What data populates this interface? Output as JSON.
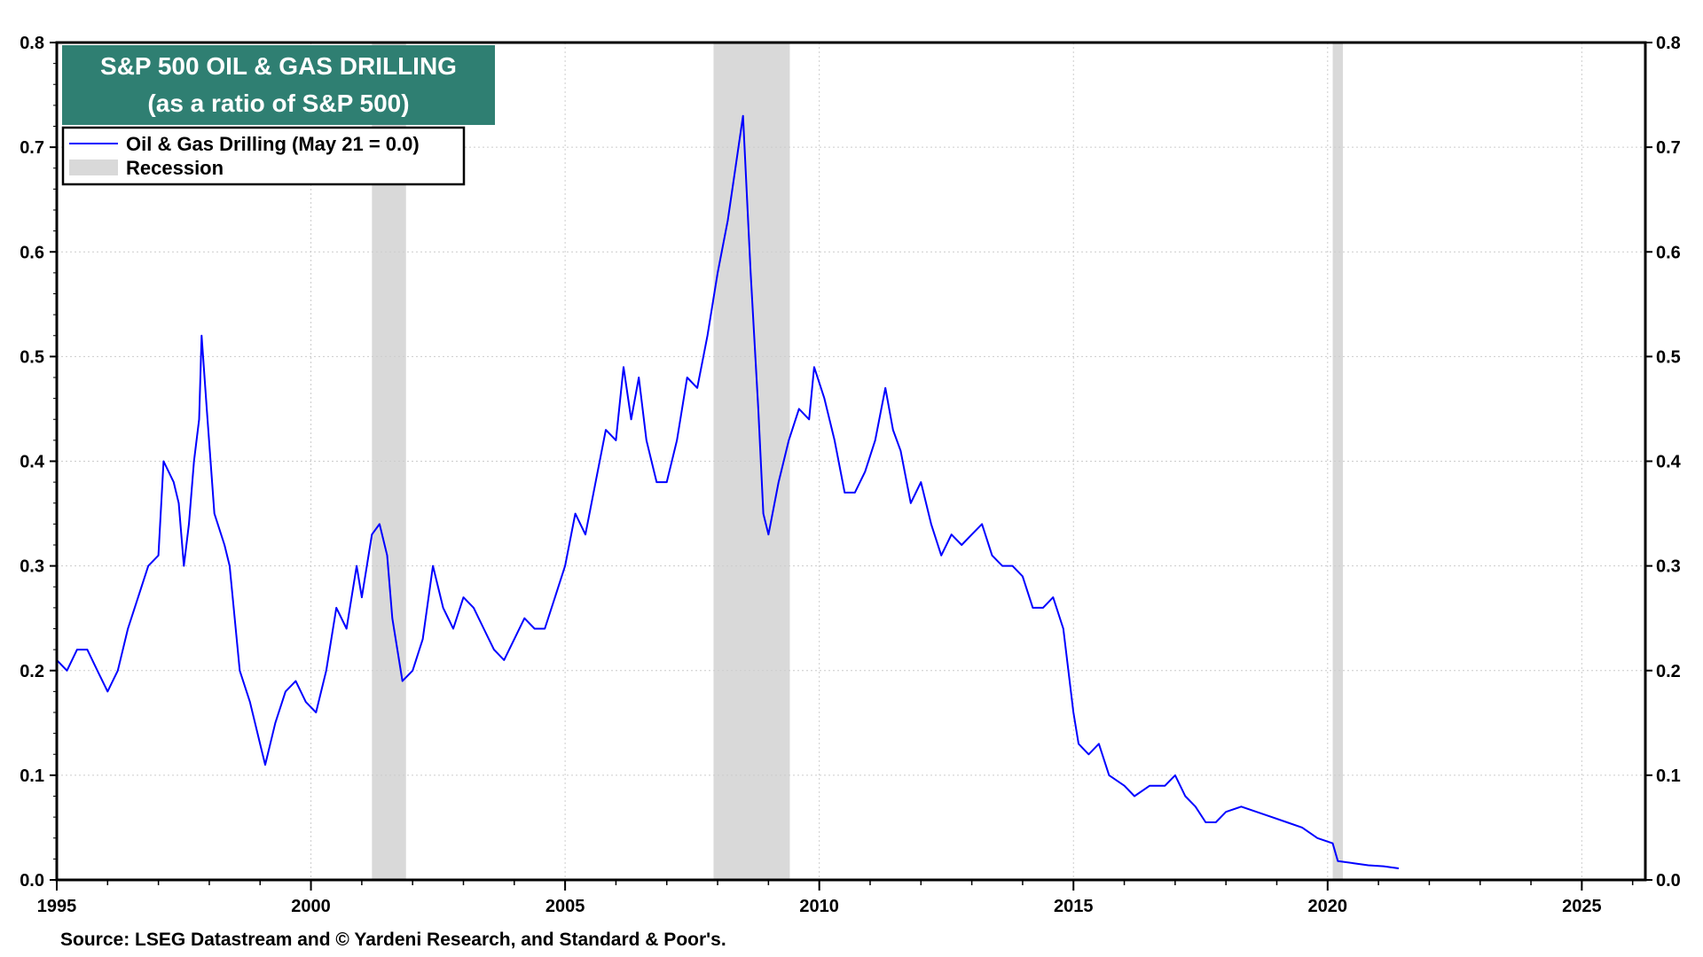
{
  "chart_data": {
    "type": "line",
    "title": "S&P 500 OIL & GAS DRILLING",
    "subtitle": "(as a ratio of S&P 500)",
    "xlabel": "",
    "ylabel": "",
    "xlim": [
      1995,
      2026.25
    ],
    "ylim": [
      0,
      0.8
    ],
    "grid": true,
    "legend_position": "top-left",
    "x_ticks": [
      "1995",
      "2000",
      "2005",
      "2010",
      "2015",
      "2020",
      "2025"
    ],
    "y_ticks": [
      "0.0",
      "0.1",
      "0.2",
      "0.3",
      "0.4",
      "0.5",
      "0.6",
      "0.7",
      "0.8"
    ],
    "colors": {
      "line": "#0000ff",
      "recession": "#d9d9d9",
      "title_bg": "#2f7f72"
    },
    "legend": [
      {
        "label": "Oil & Gas Drilling (May 21 = 0.0)",
        "type": "line"
      },
      {
        "label": "Recession",
        "type": "band"
      }
    ],
    "recessions": [
      [
        2001.2,
        2001.87
      ],
      [
        2007.92,
        2009.42
      ],
      [
        2020.1,
        2020.3
      ]
    ],
    "series": [
      {
        "name": "Oil & Gas Drilling (May 21 = 0.0)",
        "x": [
          1995.0,
          1995.2,
          1995.4,
          1995.6,
          1995.8,
          1996.0,
          1996.2,
          1996.4,
          1996.6,
          1996.8,
          1997.0,
          1997.1,
          1997.3,
          1997.4,
          1997.5,
          1997.6,
          1997.7,
          1997.8,
          1997.85,
          1997.95,
          1998.1,
          1998.3,
          1998.4,
          1998.5,
          1998.6,
          1998.8,
          1999.0,
          1999.1,
          1999.3,
          1999.5,
          1999.7,
          1999.9,
          2000.1,
          2000.3,
          2000.5,
          2000.7,
          2000.9,
          2001.0,
          2001.2,
          2001.35,
          2001.5,
          2001.6,
          2001.8,
          2002.0,
          2002.2,
          2002.4,
          2002.6,
          2002.8,
          2003.0,
          2003.2,
          2003.4,
          2003.6,
          2003.8,
          2004.0,
          2004.2,
          2004.4,
          2004.6,
          2004.8,
          2005.0,
          2005.2,
          2005.4,
          2005.6,
          2005.8,
          2006.0,
          2006.15,
          2006.3,
          2006.45,
          2006.6,
          2006.8,
          2007.0,
          2007.2,
          2007.4,
          2007.6,
          2007.8,
          2008.0,
          2008.2,
          2008.35,
          2008.5,
          2008.65,
          2008.8,
          2008.9,
          2009.0,
          2009.2,
          2009.4,
          2009.6,
          2009.8,
          2009.9,
          2010.1,
          2010.3,
          2010.5,
          2010.7,
          2010.9,
          2011.1,
          2011.3,
          2011.45,
          2011.6,
          2011.8,
          2012.0,
          2012.2,
          2012.4,
          2012.6,
          2012.8,
          2013.0,
          2013.2,
          2013.4,
          2013.6,
          2013.8,
          2014.0,
          2014.2,
          2014.4,
          2014.6,
          2014.8,
          2015.0,
          2015.1,
          2015.3,
          2015.5,
          2015.7,
          2016.0,
          2016.2,
          2016.5,
          2016.8,
          2017.0,
          2017.2,
          2017.4,
          2017.6,
          2017.8,
          2018.0,
          2018.3,
          2018.6,
          2018.9,
          2019.2,
          2019.5,
          2019.8,
          2020.1,
          2020.2,
          2020.5,
          2020.8,
          2021.1,
          2021.4
        ],
        "values": [
          0.21,
          0.2,
          0.22,
          0.22,
          0.2,
          0.18,
          0.2,
          0.24,
          0.27,
          0.3,
          0.31,
          0.4,
          0.38,
          0.36,
          0.3,
          0.34,
          0.4,
          0.44,
          0.52,
          0.45,
          0.35,
          0.32,
          0.3,
          0.25,
          0.2,
          0.17,
          0.13,
          0.11,
          0.15,
          0.18,
          0.19,
          0.17,
          0.16,
          0.2,
          0.26,
          0.24,
          0.3,
          0.27,
          0.33,
          0.34,
          0.31,
          0.25,
          0.19,
          0.2,
          0.23,
          0.3,
          0.26,
          0.24,
          0.27,
          0.26,
          0.24,
          0.22,
          0.21,
          0.23,
          0.25,
          0.24,
          0.24,
          0.27,
          0.3,
          0.35,
          0.33,
          0.38,
          0.43,
          0.42,
          0.49,
          0.44,
          0.48,
          0.42,
          0.38,
          0.38,
          0.42,
          0.48,
          0.47,
          0.52,
          0.58,
          0.63,
          0.68,
          0.73,
          0.58,
          0.45,
          0.35,
          0.33,
          0.38,
          0.42,
          0.45,
          0.44,
          0.49,
          0.46,
          0.42,
          0.37,
          0.37,
          0.39,
          0.42,
          0.47,
          0.43,
          0.41,
          0.36,
          0.38,
          0.34,
          0.31,
          0.33,
          0.32,
          0.33,
          0.34,
          0.31,
          0.3,
          0.3,
          0.29,
          0.26,
          0.26,
          0.27,
          0.24,
          0.16,
          0.13,
          0.12,
          0.13,
          0.1,
          0.09,
          0.08,
          0.09,
          0.09,
          0.1,
          0.08,
          0.07,
          0.055,
          0.055,
          0.065,
          0.07,
          0.065,
          0.06,
          0.055,
          0.05,
          0.04,
          0.035,
          0.018,
          0.016,
          0.014,
          0.013,
          0.011
        ]
      }
    ],
    "source": "Source: LSEG Datastream and © Yardeni Research, and Standard & Poor's."
  }
}
